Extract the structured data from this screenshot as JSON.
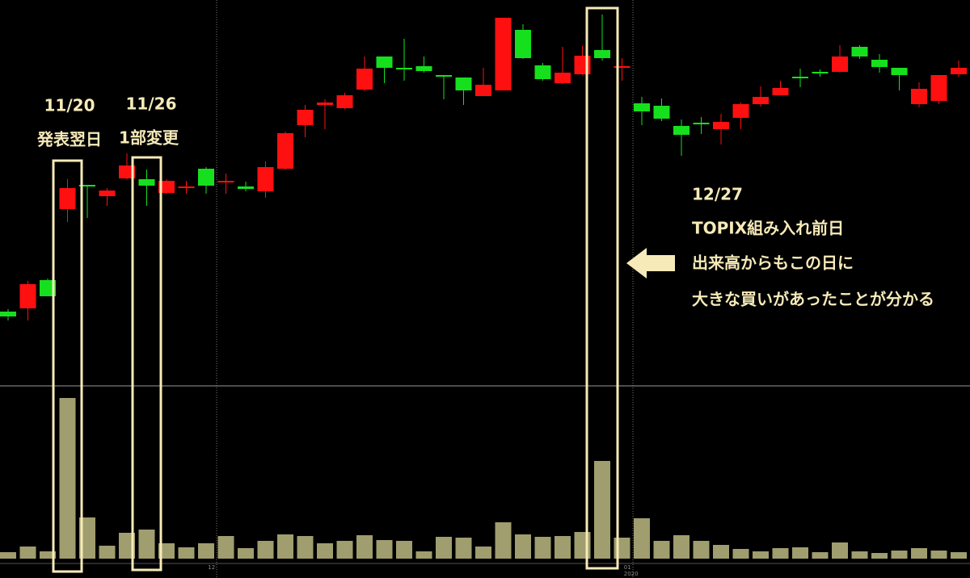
{
  "chart_data": {
    "type": "candlestick",
    "categories": [
      null,
      null,
      null,
      null,
      null,
      null,
      null,
      null,
      null,
      null,
      null,
      "12",
      null,
      null,
      null,
      null,
      null,
      null,
      null,
      null,
      null,
      null,
      null,
      null,
      null,
      null,
      null,
      null,
      null,
      null,
      null,
      null,
      "01",
      null,
      null,
      null,
      null,
      null,
      null,
      null,
      null,
      null,
      null,
      null,
      null,
      null,
      null,
      null,
      null
    ],
    "category_sublabels": [
      null,
      null,
      null,
      null,
      null,
      null,
      null,
      null,
      null,
      null,
      null,
      null,
      null,
      null,
      null,
      null,
      null,
      null,
      null,
      null,
      null,
      null,
      null,
      null,
      null,
      null,
      null,
      null,
      null,
      null,
      null,
      null,
      "2020",
      null,
      null,
      null,
      null,
      null,
      null,
      null,
      null,
      null,
      null,
      null,
      null,
      null,
      null,
      null,
      null
    ],
    "open": [
      92,
      96,
      131,
      219,
      249,
      235,
      257,
      256,
      239,
      246,
      269,
      253,
      247,
      241,
      269,
      323,
      348,
      344,
      367,
      408,
      394,
      396,
      385,
      382,
      359,
      366,
      441,
      397,
      375,
      386,
      416,
      395,
      350,
      347,
      322,
      326,
      318,
      332,
      349,
      360,
      383,
      389,
      389,
      420,
      404,
      394,
      349,
      353,
      386
    ],
    "high": [
      95,
      130,
      133,
      256,
      249,
      245,
      288,
      268,
      256,
      254,
      271,
      263,
      253,
      278,
      315,
      348,
      355,
      363,
      408,
      408,
      430,
      408,
      385,
      382,
      394,
      456,
      448,
      400,
      420,
      421,
      460,
      406,
      358,
      356,
      330,
      333,
      337,
      351,
      371,
      378,
      393,
      392,
      422,
      422,
      411,
      394,
      376,
      385,
      403
    ],
    "low": [
      81,
      81,
      111,
      203,
      208,
      223,
      256,
      223,
      238,
      238,
      238,
      238,
      241,
      233,
      268,
      308,
      318,
      343,
      365,
      375,
      378,
      388,
      355,
      348,
      359,
      366,
      405,
      378,
      374,
      385,
      403,
      378,
      323,
      328,
      285,
      312,
      299,
      318,
      346,
      360,
      370,
      383,
      388,
      405,
      388,
      366,
      345,
      349,
      383
    ],
    "close": [
      86,
      126,
      111,
      245,
      248,
      242,
      273,
      248,
      254,
      247,
      248,
      254,
      244,
      271,
      313,
      342,
      351,
      360,
      393,
      394,
      392,
      390,
      384,
      366,
      373,
      456,
      406,
      380,
      388,
      409,
      406,
      396,
      340,
      331,
      311,
      324,
      327,
      349,
      358,
      369,
      381,
      388,
      408,
      408,
      395,
      385,
      368,
      385,
      394
    ],
    "volume": [
      8,
      15,
      9,
      199,
      51,
      16,
      32,
      36,
      19,
      14,
      19,
      28,
      13,
      22,
      30,
      28,
      19,
      22,
      29,
      23,
      22,
      9,
      27,
      26,
      15,
      45,
      30,
      27,
      28,
      33,
      121,
      26,
      50,
      22,
      29,
      22,
      17,
      12,
      9,
      13,
      14,
      8,
      20,
      9,
      7,
      10,
      13,
      10,
      8
    ],
    "ylim": [
      0,
      478
    ],
    "volume_ylim": [
      0,
      214
    ],
    "up_color": "#ff1010",
    "down_color": "#16e01e",
    "volume_color": "#a09d6e",
    "annotations": [
      "11/20",
      "発表翌日",
      "11/26",
      "1部変更",
      "12/27",
      "TOPIX組み入れ前日",
      "出来高からもこの日に",
      "大きな買いがあったことが分かる"
    ]
  }
}
